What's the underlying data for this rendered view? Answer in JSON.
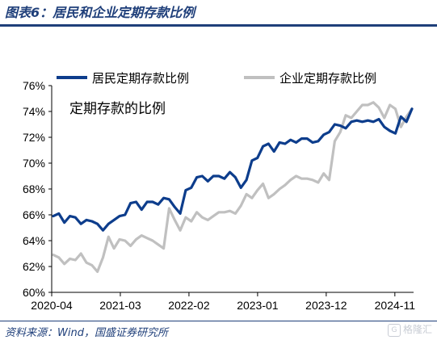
{
  "header": {
    "title": "图表6：居民和企业定期存款比例"
  },
  "footer": {
    "source": "资料来源：Wind，国盛证券研究所",
    "watermark_text": "格隆汇"
  },
  "chart_data": {
    "type": "line",
    "annotation": "定期存款的比例",
    "x_tick_labels": [
      "2020-04",
      "2021-03",
      "2022-02",
      "2023-01",
      "2023-12",
      "2024-11"
    ],
    "y_tick_labels": [
      "60%",
      "62%",
      "64%",
      "66%",
      "68%",
      "70%",
      "72%",
      "74%",
      "76%"
    ],
    "ylim": [
      60,
      76
    ],
    "x_start": "2020-04",
    "x_end": "2025-02",
    "grid": false,
    "legend_position": "top",
    "series": [
      {
        "name": "居民定期存款比例",
        "color": "#0d3d8c",
        "values": [
          65.9,
          66.1,
          65.4,
          65.9,
          65.8,
          65.3,
          65.6,
          65.5,
          65.3,
          64.8,
          65.3,
          65.6,
          65.9,
          66.0,
          66.9,
          67.0,
          66.4,
          67.0,
          67.0,
          66.8,
          67.3,
          67.2,
          66.6,
          66.1,
          67.9,
          68.1,
          68.9,
          69.0,
          68.6,
          69.0,
          69.0,
          68.8,
          69.3,
          68.9,
          68.1,
          68.7,
          70.2,
          70.4,
          71.3,
          71.5,
          70.9,
          71.6,
          71.5,
          71.8,
          71.6,
          71.9,
          71.9,
          71.6,
          71.7,
          72.2,
          72.4,
          73.0,
          72.9,
          72.7,
          73.2,
          73.3,
          73.2,
          73.3,
          73.2,
          73.4,
          72.8,
          72.5,
          72.3,
          73.6,
          73.2,
          74.2
        ]
      },
      {
        "name": "企业定期存款比例",
        "color": "#c0c0c0",
        "values": [
          62.9,
          62.7,
          62.2,
          62.6,
          62.5,
          63.0,
          62.3,
          62.1,
          61.6,
          62.7,
          64.3,
          63.4,
          64.1,
          64.0,
          63.6,
          64.1,
          64.4,
          64.2,
          64.0,
          63.7,
          63.4,
          66.5,
          65.6,
          64.8,
          65.8,
          65.5,
          66.2,
          65.8,
          65.6,
          65.9,
          66.2,
          66.2,
          66.3,
          66.1,
          66.7,
          67.6,
          67.3,
          67.9,
          68.4,
          67.3,
          67.6,
          68.0,
          68.3,
          68.7,
          69.0,
          68.8,
          68.8,
          68.7,
          68.5,
          69.2,
          68.7,
          71.7,
          72.4,
          73.7,
          73.5,
          74.0,
          74.5,
          74.5,
          74.7,
          74.3,
          73.5,
          74.5,
          74.2,
          72.8,
          73.6,
          74.2
        ]
      }
    ]
  }
}
